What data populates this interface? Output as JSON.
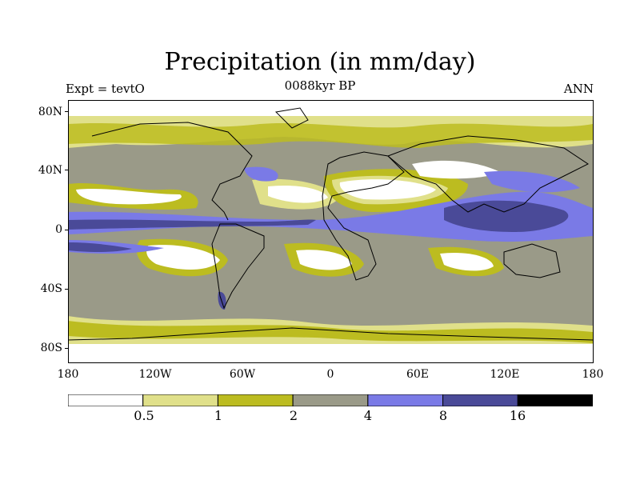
{
  "title": "Precipitation (in mm/day)",
  "subtitle_left": "Expt = tevtO",
  "subtitle_center": "0088kyr BP",
  "subtitle_right": "ANN",
  "y_ticks": [
    "80N",
    "40N",
    "0",
    "40S",
    "80S"
  ],
  "x_ticks": [
    "180",
    "120W",
    "60W",
    "0",
    "60E",
    "120E",
    "180"
  ],
  "colorbar": {
    "labels": [
      "0.5",
      "1",
      "2",
      "4",
      "8",
      "16"
    ],
    "colors": [
      "#ffffff",
      "#e0e08a",
      "#bcbc20",
      "#9a9a88",
      "#7a7ae6",
      "#4a4a98",
      "#000000"
    ]
  },
  "colors": {
    "background": "#9a9a88",
    "coast": "#000000"
  }
}
